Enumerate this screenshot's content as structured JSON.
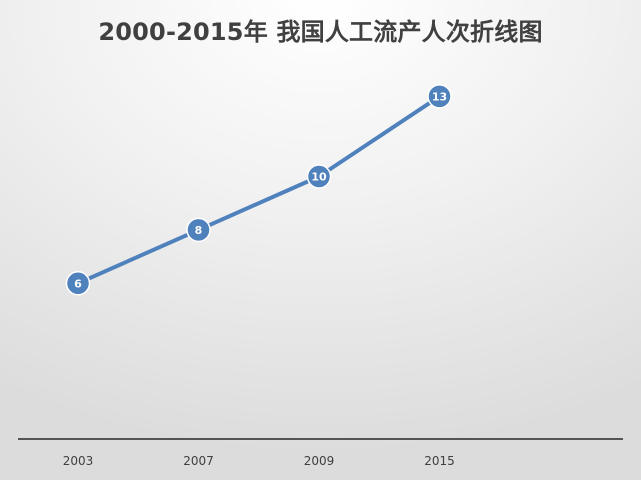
{
  "chart_data": {
    "type": "line",
    "title": "2000-2015年 我国人工流产人次折线图",
    "categories": [
      "2003",
      "2007",
      "2009",
      "2015"
    ],
    "series": [
      {
        "values": [
          6,
          8,
          10,
          13
        ]
      }
    ],
    "data_labels": [
      "6",
      "8",
      "10",
      "13"
    ],
    "ylim": [
      0,
      16
    ],
    "grid": false,
    "legend": "none",
    "colors": {
      "line": "#4f81bd",
      "marker": "#4f81bd",
      "label": "#ffffff",
      "axis": "#262626"
    }
  }
}
